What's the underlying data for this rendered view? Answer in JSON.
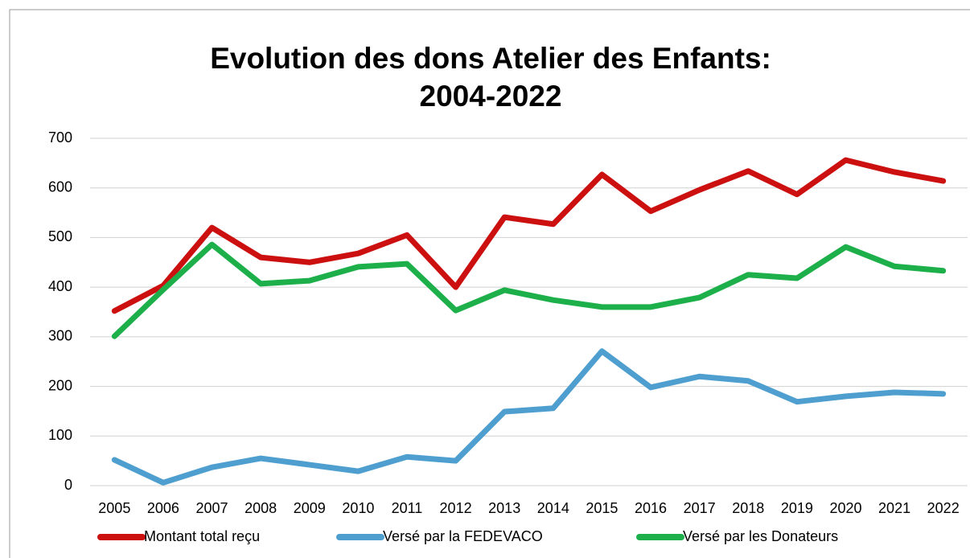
{
  "chart_data": {
    "type": "line",
    "title": [
      "Evolution des dons Atelier des Enfants:",
      "2004-2022"
    ],
    "categories": [
      "2005",
      "2006",
      "2007",
      "2008",
      "2009",
      "2010",
      "2011",
      "2012",
      "2013",
      "2014",
      "2015",
      "2016",
      "2017",
      "2018",
      "2019",
      "2020",
      "2021",
      "2022"
    ],
    "series": [
      {
        "name": "Montant total reçu",
        "color": "#cc1010",
        "values": [
          352,
          403,
          520,
          460,
          450,
          468,
          505,
          400,
          541,
          527,
          627,
          553,
          596,
          634,
          587,
          656,
          632,
          614
        ]
      },
      {
        "name": "Versé par la FEDEVACO",
        "color": "#4e9fd0",
        "values": [
          52,
          6,
          37,
          55,
          42,
          29,
          58,
          50,
          149,
          156,
          271,
          198,
          220,
          211,
          169,
          180,
          188,
          185
        ]
      },
      {
        "name": "Versé par les Donateurs",
        "color": "#1db04a",
        "values": [
          301,
          395,
          486,
          407,
          413,
          441,
          447,
          353,
          394,
          374,
          360,
          360,
          379,
          425,
          418,
          481,
          442,
          433
        ]
      }
    ],
    "ylim": [
      0,
      700
    ],
    "yticks": [
      0,
      100,
      200,
      300,
      400,
      500,
      600,
      700
    ],
    "grid": true,
    "legend": "bottom"
  }
}
